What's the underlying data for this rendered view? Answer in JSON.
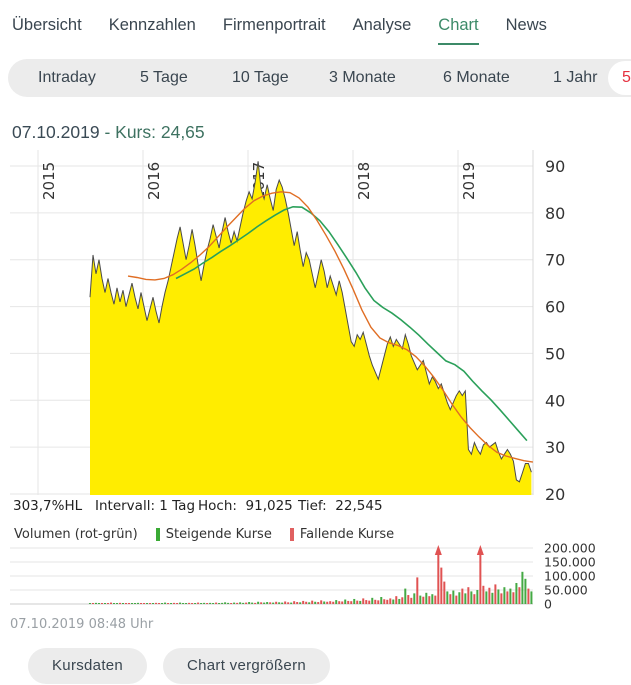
{
  "nav": {
    "items": [
      {
        "label": "Übersicht",
        "active": false
      },
      {
        "label": "Kennzahlen",
        "active": false
      },
      {
        "label": "Firmenportrait",
        "active": false
      },
      {
        "label": "Analyse",
        "active": false
      },
      {
        "label": "Chart",
        "active": true
      },
      {
        "label": "News",
        "active": false
      }
    ]
  },
  "tabs": {
    "items": [
      "Intraday",
      "5 Tage",
      "10 Tage",
      "3 Monate",
      "6 Monate",
      "1 Jahr"
    ],
    "selected_visible": "5"
  },
  "quote": {
    "date": "07.10.2019",
    "kurs": " - Kurs: 24,65"
  },
  "stats": {
    "hl": "303,7%HL",
    "intervall": "Intervall: 1 Tag",
    "hoch": "Hoch:  91,025",
    "tief": "Tief:  22,545"
  },
  "legend": {
    "volume": "Volumen (rot-grün)",
    "up": "Steigende Kurse",
    "down": "Fallende Kurse"
  },
  "timestamp": "07.10.2019 08:48 Uhr",
  "buttons": {
    "kursdaten": "Kursdaten",
    "enlarge": "Chart vergrößern"
  },
  "colors": {
    "accent_green": "#3c8a68",
    "selected_red": "#e5303f",
    "area_fill": "#ffed00",
    "price_line": "#4a4a4a",
    "ma_slow": "#2ba05a",
    "ma_fast": "#e06e24",
    "grid": "#e6e6e6",
    "axis_line": "#d8d8d8",
    "axis_text": "#333333",
    "vol_up": "#44a944",
    "vol_down": "#e05252",
    "chip_up": "#3aaa35",
    "chip_down": "#e06060"
  },
  "chart_data": [
    {
      "type": "area",
      "x_axis": {
        "ticks": [
          2015,
          2016,
          2017,
          2018,
          2019
        ],
        "tick_labels": [
          "2015",
          "2016",
          "2017",
          "2018",
          "2019"
        ],
        "position": "top",
        "range": [
          2014.73,
          2019.77
        ]
      },
      "y_axis": {
        "ticks": [
          20,
          30,
          40,
          50,
          60,
          70,
          80,
          90
        ],
        "position": "right",
        "range": [
          19.8,
          93.4
        ]
      },
      "grid": true,
      "high": 91.025,
      "low": 22.545,
      "last": 24.65,
      "series": {
        "price": {
          "x_start": 2015.495,
          "x_step": 0.0286,
          "values": [
            62,
            71,
            67,
            70,
            66,
            63,
            66,
            63,
            60.5,
            64,
            61,
            63.5,
            60,
            62.5,
            65,
            62,
            59.5,
            63,
            60,
            57,
            59.5,
            62,
            59,
            56.5,
            60,
            63,
            65.5,
            68.5,
            71.5,
            74.5,
            77,
            73.5,
            70,
            73,
            76.5,
            73,
            69,
            65.5,
            69,
            72,
            74.5,
            77.5,
            75,
            72.5,
            76,
            79,
            76,
            73.5,
            76,
            74,
            77,
            80,
            82.5,
            84.5,
            83,
            86.5,
            91,
            85,
            83,
            86,
            83,
            80.5,
            85,
            87,
            85.5,
            83,
            80,
            76.5,
            73,
            76,
            72,
            68.5,
            71.5,
            70,
            67,
            64,
            67,
            70,
            67.5,
            64,
            66.5,
            64.5,
            62.5,
            65.5,
            63,
            59.5,
            56,
            52.5,
            51.5,
            54,
            53,
            54.5,
            52,
            49.5,
            47.5,
            46,
            44.5,
            47,
            49.5,
            52,
            53.5,
            51.5,
            53,
            52,
            51,
            54,
            52,
            49.5,
            48,
            46.5,
            47.5,
            48.5,
            46,
            43.5,
            45,
            44,
            42.5,
            43.5,
            41.5,
            39.5,
            38,
            39.5,
            41,
            42,
            41,
            42,
            29.5,
            28.5,
            31,
            29.5,
            28.5,
            30.5,
            31,
            30,
            30.5,
            31,
            29,
            27.5,
            28.5,
            29.5,
            28.5,
            27,
            23,
            22.6,
            24.5,
            26.5,
            26.5,
            24.65
          ]
        },
        "ma_slow": {
          "x_start": 2016.314,
          "x_step": 0.0857,
          "values": [
            66,
            67,
            68,
            69.3,
            70.5,
            71.8,
            73,
            74.3,
            75.6,
            77,
            78.3,
            79.5,
            80.6,
            81.3,
            81.2,
            80,
            78.3,
            76,
            73.2,
            70.3,
            67.3,
            64,
            61.3,
            59.8,
            58.6,
            57.2,
            55.6,
            53.9,
            52,
            50.2,
            48.4,
            47.6,
            46.2,
            44,
            42,
            40.1,
            38,
            35.8,
            33.6,
            31.4
          ]
        },
        "ma_fast": {
          "x_start": 2015.857,
          "x_step": 0.0857,
          "values": [
            66.5,
            66.2,
            65.8,
            65.7,
            66,
            66.8,
            68,
            69.4,
            71,
            72.8,
            74.9,
            77,
            79,
            81,
            82.6,
            83.6,
            84.2,
            84.5,
            84.3,
            83.2,
            81.2,
            78.4,
            75.2,
            71.8,
            68,
            63.8,
            59.3,
            55.6,
            53.3,
            52.3,
            51.7,
            50.8,
            49.3,
            47.3,
            44.9,
            42.2,
            39.2,
            36.5,
            34.2,
            32.2,
            30.4,
            28.9,
            28.1,
            27.6,
            27.1,
            26.8
          ]
        }
      }
    },
    {
      "type": "bar",
      "y_axis": {
        "ticks": [
          0,
          50,
          100,
          150,
          200
        ],
        "tick_labels": [
          "0",
          "50.000",
          "100.000",
          "150.000",
          "200.000"
        ],
        "position": "right",
        "value_unit": "thousand"
      },
      "grid": true,
      "overflow_arrow_threshold": 200,
      "series": {
        "volume": {
          "x_start": 2015.495,
          "x_step": 0.0286,
          "values": [
            3,
            2,
            4,
            2,
            3,
            2,
            2,
            5,
            3,
            2,
            4,
            2,
            3,
            2,
            2,
            3,
            4,
            2,
            3,
            2,
            3,
            2,
            4,
            3,
            2,
            5,
            3,
            2,
            4,
            3,
            5,
            3,
            2,
            4,
            3,
            2,
            5,
            3,
            4,
            3,
            4,
            3,
            5,
            3,
            4,
            6,
            4,
            3,
            5,
            4,
            6,
            4,
            5,
            7,
            5,
            4,
            8,
            6,
            5,
            7,
            6,
            5,
            8,
            6,
            5,
            9,
            6,
            5,
            10,
            7,
            6,
            11,
            8,
            6,
            12,
            8,
            7,
            13,
            9,
            8,
            10,
            8,
            14,
            10,
            9,
            16,
            11,
            10,
            18,
            12,
            11,
            20,
            14,
            12,
            22,
            15,
            13,
            25,
            17,
            15,
            20,
            16,
            28,
            18,
            24,
            55,
            32,
            22,
            38,
            95,
            30,
            26,
            40,
            28,
            35,
            30,
            210,
            130,
            80,
            45,
            35,
            48,
            30,
            42,
            55,
            38,
            60,
            45,
            35,
            50,
            205,
            65,
            45,
            58,
            40,
            70,
            52,
            38,
            60,
            45,
            55,
            42,
            75,
            60,
            115,
            90,
            55,
            45
          ],
          "colors": "grggrgrrggrgrrgggrrgrgrrggrgrrgggrrgrggrggrggggrgrggrggrgrggrgrggrrgrrgrrgrgrrgrrrgrrgrrgrgrrrgrrgrrrgrgrgrrgrgrgrgrrrrgrgrgrgrgrgrrgrgrgrgrgrgrggrg"
        }
      }
    }
  ]
}
